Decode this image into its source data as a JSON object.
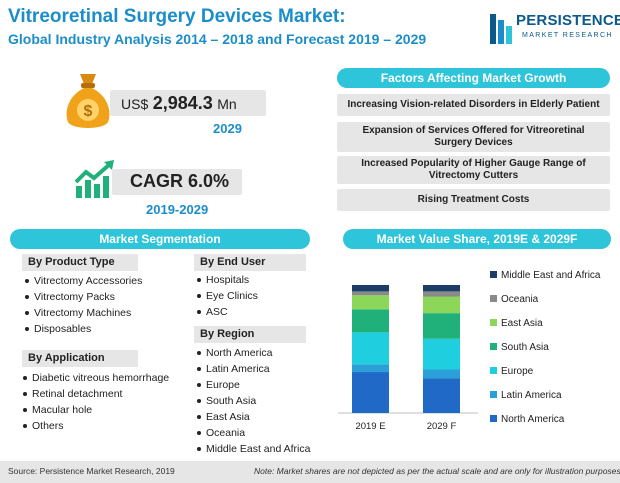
{
  "header": {
    "title_line1": "Vitreoretinal Surgery Devices Market:",
    "title_line2": "Global Industry Analysis 2014 – 2018 and Forecast 2019 – 2029"
  },
  "logo": {
    "brand": "PERSISTENCE",
    "tagline": "MARKET RESEARCH"
  },
  "kpi_market_size": {
    "currency": "US$",
    "value": "2,984.3",
    "unit": "Mn",
    "year": "2029"
  },
  "kpi_cagr": {
    "label": "CAGR 6.0%",
    "period": "2019-2029"
  },
  "factors": {
    "title": "Factors Affecting Market Growth",
    "items": [
      "Increasing Vision-related Disorders in Elderly Patient",
      "Expansion of Services Offered for Vitreoretinal Surgery Devices",
      "Increased Popularity of Higher Gauge Range of Vitrectomy Cutters",
      "Rising Treatment Costs"
    ]
  },
  "segmentation": {
    "title": "Market Segmentation",
    "by_product_type": {
      "title": "By Product Type",
      "items": [
        "Vitrectomy Accessories",
        "Vitrectomy Packs",
        "Vitrectomy Machines",
        "Disposables"
      ]
    },
    "by_application": {
      "title": "By Application",
      "items": [
        "Diabetic vitreous hemorrhage",
        "Retinal detachment",
        "Macular hole",
        "Others"
      ]
    },
    "by_end_user": {
      "title": "By End User",
      "items": [
        "Hospitals",
        "Eye Clinics",
        "ASC"
      ]
    },
    "by_region": {
      "title": "By Region",
      "items": [
        "North America",
        "Latin America",
        "Europe",
        "South Asia",
        "East Asia",
        "Oceania",
        "Middle East and Africa"
      ]
    }
  },
  "colors": {
    "accent": "#2ec4d9",
    "title": "#1b8ec9",
    "panel": "#e6e6e6"
  },
  "chart_data": {
    "type": "bar",
    "stacked": true,
    "title": "Market Value Share, 2019E & 2029F",
    "categories": [
      "2019 E",
      "2029 F"
    ],
    "series": [
      {
        "name": "North America",
        "color": "#2069c6",
        "values": [
          32,
          27
        ]
      },
      {
        "name": "Latin America",
        "color": "#2a9fd8",
        "values": [
          6,
          7
        ]
      },
      {
        "name": "Europe",
        "color": "#1fcfe0",
        "values": [
          25,
          24
        ]
      },
      {
        "name": "South Asia",
        "color": "#20b07a",
        "values": [
          18,
          20
        ]
      },
      {
        "name": "East Asia",
        "color": "#8cd65a",
        "values": [
          11,
          13
        ]
      },
      {
        "name": "Oceania",
        "color": "#8a8a8a",
        "values": [
          3,
          4
        ]
      },
      {
        "name": "Middle East and Africa",
        "color": "#1c3d66",
        "values": [
          5,
          5
        ]
      }
    ],
    "ylim": [
      0,
      100
    ],
    "grid": false,
    "legend": "right"
  },
  "footer": {
    "source": "Source: Persistence Market Research, 2019",
    "note": "Note: Market shares are not depicted as per the actual scale and are only for illustration purposes."
  }
}
